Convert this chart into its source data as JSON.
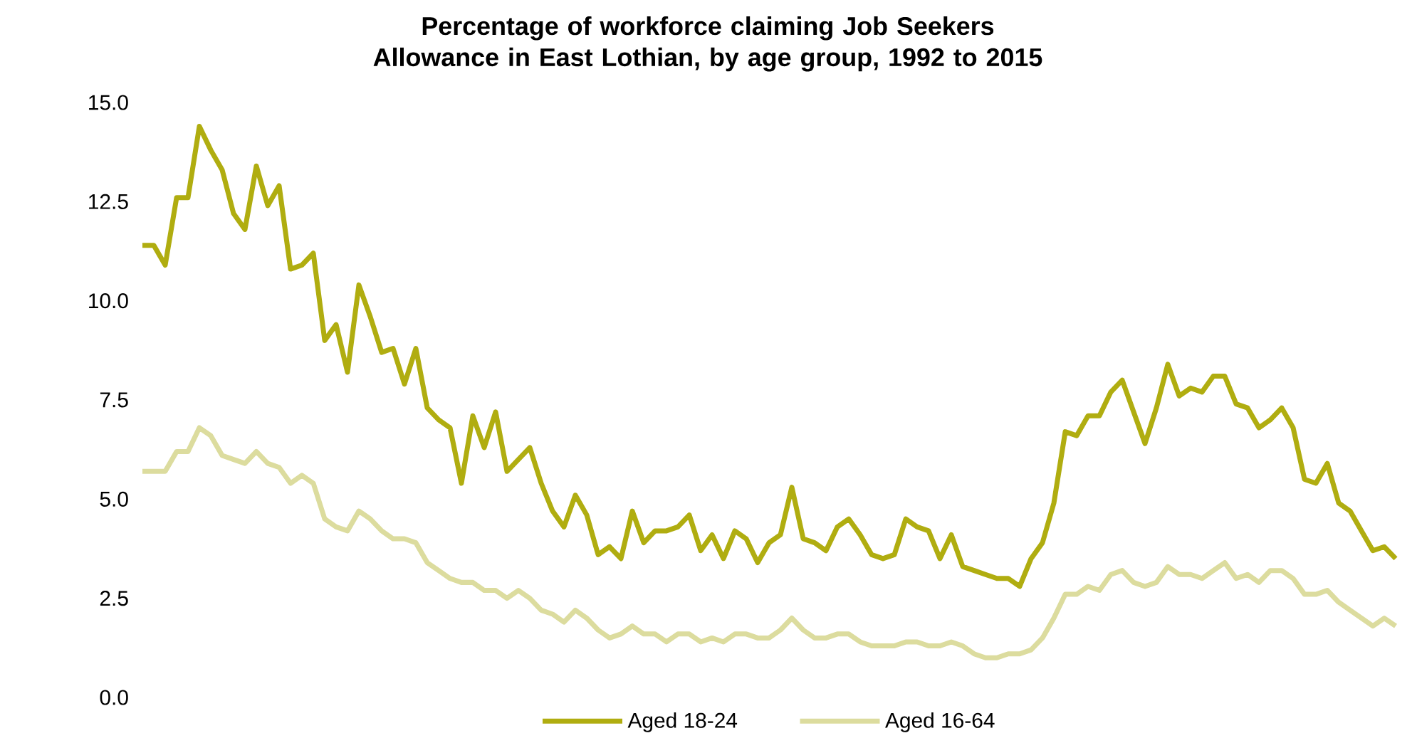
{
  "chart_data": {
    "type": "line",
    "title": "Percentage of workforce claiming Job Seekers Allowance in East Lothian, by age group, 1992 to 2015",
    "categories": [
      null,
      null,
      null,
      null,
      null,
      null,
      null,
      null,
      null,
      null,
      null,
      null,
      null,
      null,
      null,
      null,
      null,
      null,
      null,
      null,
      null,
      null,
      null,
      null,
      null,
      null,
      null,
      null,
      null,
      null,
      null,
      null,
      null,
      null,
      null,
      null,
      null,
      null,
      null,
      null,
      null,
      null,
      null,
      null,
      null,
      null,
      null,
      null,
      null,
      null,
      null,
      null,
      null,
      null,
      null,
      null,
      null,
      null,
      null,
      null,
      null,
      null,
      null,
      null,
      null,
      null,
      null,
      null,
      null,
      null,
      null,
      null,
      null,
      null,
      null,
      null,
      null,
      null,
      null,
      null,
      null,
      null,
      null,
      null,
      null,
      null,
      null,
      null,
      null,
      null,
      null,
      null,
      null,
      null,
      null,
      null,
      null,
      null,
      null,
      null,
      null,
      null,
      null,
      null,
      null,
      null,
      null,
      null,
      null,
      null,
      null
    ],
    "series": [
      {
        "name": "Aged 18-24",
        "color": "#b0ad10",
        "values": [
          11.4,
          11.4,
          10.9,
          12.6,
          12.6,
          14.4,
          13.8,
          13.3,
          12.2,
          11.8,
          13.4,
          12.4,
          12.9,
          10.8,
          10.9,
          11.2,
          9.0,
          9.4,
          8.2,
          10.4,
          9.6,
          8.7,
          8.8,
          7.9,
          8.8,
          7.3,
          7.0,
          6.8,
          5.4,
          7.1,
          6.3,
          7.2,
          5.7,
          6.0,
          6.3,
          5.4,
          4.7,
          4.3,
          5.1,
          4.6,
          3.6,
          3.8,
          3.5,
          4.7,
          3.9,
          4.2,
          4.2,
          4.3,
          4.6,
          3.7,
          4.1,
          3.5,
          4.2,
          4.0,
          3.4,
          3.9,
          4.1,
          5.3,
          4.0,
          3.9,
          3.7,
          4.3,
          4.5,
          4.1,
          3.6,
          3.5,
          3.6,
          4.5,
          4.3,
          4.2,
          3.5,
          4.1,
          3.3,
          3.2,
          3.1,
          3.0,
          3.0,
          2.8,
          3.5,
          3.9,
          4.9,
          6.7,
          6.6,
          7.1,
          7.1,
          7.7,
          8.0,
          7.2,
          6.4,
          7.3,
          8.4,
          7.6,
          7.8,
          7.7,
          8.1,
          8.1,
          7.4,
          7.3,
          6.8,
          7.0,
          7.3,
          6.8,
          5.5,
          5.4,
          5.9,
          4.9,
          4.7,
          4.2,
          3.7,
          3.8,
          3.5
        ]
      },
      {
        "name": "Aged 16-64",
        "color": "#dcdc9e",
        "values": [
          5.7,
          5.7,
          5.7,
          6.2,
          6.2,
          6.8,
          6.6,
          6.1,
          6.0,
          5.9,
          6.2,
          5.9,
          5.8,
          5.4,
          5.6,
          5.4,
          4.5,
          4.3,
          4.2,
          4.7,
          4.5,
          4.2,
          4.0,
          4.0,
          3.9,
          3.4,
          3.2,
          3.0,
          2.9,
          2.9,
          2.7,
          2.7,
          2.5,
          2.7,
          2.5,
          2.2,
          2.1,
          1.9,
          2.2,
          2.0,
          1.7,
          1.5,
          1.6,
          1.8,
          1.6,
          1.6,
          1.4,
          1.6,
          1.6,
          1.4,
          1.5,
          1.4,
          1.6,
          1.6,
          1.5,
          1.5,
          1.7,
          2.0,
          1.7,
          1.5,
          1.5,
          1.6,
          1.6,
          1.4,
          1.3,
          1.3,
          1.3,
          1.4,
          1.4,
          1.3,
          1.3,
          1.4,
          1.3,
          1.1,
          1.0,
          1.0,
          1.1,
          1.1,
          1.2,
          1.5,
          2.0,
          2.6,
          2.6,
          2.8,
          2.7,
          3.1,
          3.2,
          2.9,
          2.8,
          2.9,
          3.3,
          3.1,
          3.1,
          3.0,
          3.2,
          3.4,
          3.0,
          3.1,
          2.9,
          3.2,
          3.2,
          3.0,
          2.6,
          2.6,
          2.7,
          2.4,
          2.2,
          2.0,
          1.8,
          2.0,
          1.8
        ]
      }
    ],
    "ylim": [
      0,
      15
    ],
    "yticks": [
      {
        "value": 0,
        "label": "0.0"
      },
      {
        "value": 2.5,
        "label": "2.5"
      },
      {
        "value": 5,
        "label": "5.0"
      },
      {
        "value": 7.5,
        "label": "7.5"
      },
      {
        "value": 10,
        "label": "10.0"
      },
      {
        "value": 12.5,
        "label": "12.5"
      },
      {
        "value": 15,
        "label": "15.0"
      }
    ],
    "grid": false,
    "legend": "bottom",
    "marker": "none",
    "line_style": "solid"
  }
}
